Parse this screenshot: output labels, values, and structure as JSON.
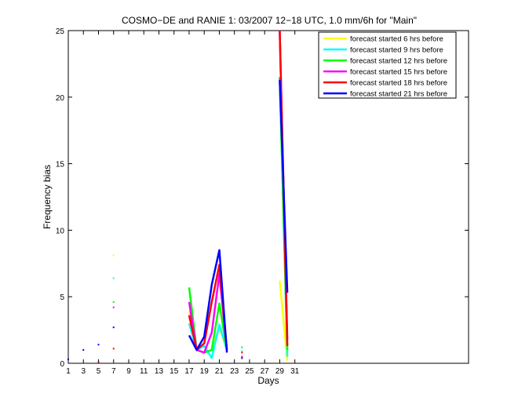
{
  "chart_data": {
    "type": "line",
    "title": "COSMO−DE and RANIE 1: 03/2007 12−18 UTC, 1.0 mm/6h for \"Main\"",
    "xlabel": "Days",
    "ylabel": "Frequency bias",
    "xlim": [
      1,
      54
    ],
    "ylim": [
      0,
      25
    ],
    "xticks": [
      1,
      3,
      5,
      7,
      9,
      11,
      13,
      15,
      17,
      19,
      21,
      23,
      25,
      27,
      29,
      31
    ],
    "yticks": [
      0,
      5,
      10,
      15,
      20,
      25
    ],
    "grid": false,
    "legend_position": "top-right",
    "series": [
      {
        "name": "forecast started 6 hrs before",
        "color": "#ffff00",
        "x": [
          1,
          3,
          5,
          7,
          17,
          18,
          19,
          20,
          21,
          22,
          24,
          29,
          30
        ],
        "y": [
          0.3,
          null,
          null,
          8.1,
          3.9,
          1.0,
          0.8,
          1.0,
          2.7,
          1.0,
          0.3,
          6.2,
          0.2
        ]
      },
      {
        "name": "forecast started 9 hrs before",
        "color": "#00ffff",
        "x": [
          1,
          3,
          5,
          7,
          17,
          18,
          19,
          20,
          21,
          22,
          24,
          29,
          30
        ],
        "y": [
          0.3,
          null,
          null,
          6.4,
          3.0,
          1.0,
          1.3,
          0.4,
          2.9,
          1.0,
          0.9,
          21.5,
          0.5
        ]
      },
      {
        "name": "forecast started 12 hrs before",
        "color": "#00ff00",
        "x": [
          1,
          3,
          5,
          7,
          17,
          18,
          19,
          20,
          21,
          22,
          24,
          29,
          30
        ],
        "y": [
          0.3,
          null,
          null,
          4.6,
          5.7,
          1.0,
          0.8,
          1.0,
          4.5,
          1.0,
          1.2,
          21.5,
          1.0
        ]
      },
      {
        "name": "forecast started 15 hrs before",
        "color": "#ff00ff",
        "x": [
          1,
          3,
          5,
          7,
          17,
          18,
          19,
          20,
          21,
          22,
          24,
          29,
          30
        ],
        "y": [
          0.3,
          null,
          null,
          4.2,
          4.6,
          1.0,
          0.8,
          2.3,
          6.7,
          1.0,
          0.5,
          25,
          1.8
        ]
      },
      {
        "name": "forecast started 18 hrs before",
        "color": "#ff0000",
        "x": [
          1,
          3,
          5,
          7,
          17,
          18,
          19,
          20,
          21,
          22,
          24,
          29,
          30
        ],
        "y": [
          0.3,
          null,
          0.1,
          1.1,
          3.6,
          1.0,
          1.5,
          4.6,
          7.4,
          1.0,
          0.8,
          25,
          1.3
        ]
      },
      {
        "name": "forecast started 21 hrs before",
        "color": "#0000ff",
        "x": [
          1,
          3,
          5,
          7,
          17,
          18,
          19,
          20,
          21,
          22,
          24,
          29,
          30
        ],
        "y": [
          0.3,
          1.0,
          1.4,
          2.7,
          2.1,
          1.0,
          2.0,
          5.9,
          8.5,
          0.8,
          0.4,
          21.3,
          5.3
        ]
      }
    ]
  }
}
